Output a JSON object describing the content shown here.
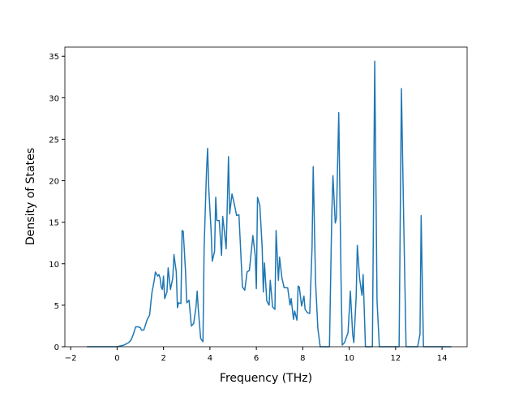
{
  "chart_data": {
    "type": "line",
    "xlabel": "Frequency (THz)",
    "ylabel": "Density of States",
    "xlim": [
      -2.25,
      15.08
    ],
    "ylim": [
      0,
      36.1
    ],
    "xticks": [
      {
        "value": -2,
        "label": "−2"
      },
      0,
      2,
      4,
      6,
      8,
      10,
      12,
      14
    ],
    "yticks": [
      0,
      5,
      10,
      15,
      20,
      25,
      30,
      35
    ],
    "series": [
      {
        "color": "#1f77b4",
        "x": [
          -1.3,
          0,
          0.3,
          0.5,
          0.6,
          0.7,
          0.8,
          0.9,
          1.0,
          1.05,
          1.15,
          1.3,
          1.4,
          1.5,
          1.6,
          1.65,
          1.75,
          1.8,
          1.85,
          1.9,
          1.95,
          2.0,
          2.05,
          2.15,
          2.2,
          2.3,
          2.4,
          2.45,
          2.55,
          2.6,
          2.65,
          2.75,
          2.8,
          2.85,
          2.95,
          3.0,
          3.1,
          3.2,
          3.3,
          3.4,
          3.45,
          3.5,
          3.6,
          3.7,
          3.75,
          3.85,
          3.9,
          3.95,
          4.05,
          4.1,
          4.2,
          4.25,
          4.3,
          4.4,
          4.5,
          4.55,
          4.6,
          4.7,
          4.8,
          4.85,
          4.95,
          5.05,
          5.15,
          5.25,
          5.4,
          5.5,
          5.6,
          5.7,
          5.85,
          5.95,
          6.0,
          6.05,
          6.15,
          6.25,
          6.3,
          6.35,
          6.45,
          6.55,
          6.6,
          6.7,
          6.8,
          6.85,
          6.95,
          7.0,
          7.1,
          7.2,
          7.35,
          7.45,
          7.5,
          7.6,
          7.65,
          7.75,
          7.8,
          7.85,
          7.95,
          8.05,
          8.1,
          8.2,
          8.3,
          8.4,
          8.45,
          8.55,
          8.65,
          8.75,
          9.15,
          9.25,
          9.3,
          9.4,
          9.45,
          9.55,
          9.65,
          9.7,
          9.8,
          9.95,
          10.05,
          10.15,
          10.2,
          10.3,
          10.35,
          10.45,
          10.55,
          10.6,
          10.7,
          11.0,
          11.1,
          11.2,
          11.3,
          12.15,
          12.25,
          12.35,
          12.45,
          12.95,
          13.05,
          13.1,
          13.2,
          14.4
        ],
        "values": [
          0,
          0,
          0.2,
          0.5,
          0.8,
          1.5,
          2.4,
          2.4,
          2.3,
          2.0,
          2.0,
          3.3,
          3.8,
          6.5,
          8.0,
          9.0,
          8.5,
          8.7,
          8.3,
          7.2,
          6.9,
          8.5,
          5.8,
          6.6,
          9.5,
          6.9,
          8.3,
          11.1,
          9.0,
          4.7,
          5.3,
          5.2,
          14.0,
          13.9,
          9.0,
          5.3,
          5.6,
          2.5,
          2.8,
          4.8,
          6.7,
          4.5,
          1.0,
          0.6,
          12.0,
          21.0,
          23.9,
          19.0,
          14.0,
          10.3,
          11.5,
          18.0,
          15.2,
          15.2,
          11.0,
          15.7,
          14.5,
          11.8,
          22.9,
          16.0,
          18.4,
          17.2,
          15.8,
          15.9,
          7.2,
          6.8,
          9.0,
          9.2,
          13.4,
          11.0,
          7.0,
          18.0,
          17.0,
          12.0,
          6.6,
          10.1,
          5.5,
          5.0,
          8.0,
          4.8,
          4.5,
          14.0,
          8.0,
          10.8,
          8.3,
          7.1,
          7.1,
          5.0,
          5.8,
          3.3,
          4.3,
          3.2,
          7.3,
          7.2,
          4.9,
          6.1,
          4.5,
          4.1,
          4.0,
          12.0,
          21.7,
          7.8,
          2.2,
          0,
          0,
          16.0,
          20.6,
          14.9,
          15.5,
          28.2,
          8.0,
          0.2,
          0.5,
          1.7,
          6.7,
          1.5,
          0.5,
          6.0,
          12.2,
          8.2,
          6.2,
          8.7,
          0,
          0,
          34.4,
          5.5,
          0,
          0,
          31.1,
          15.0,
          0,
          0,
          1.5,
          15.8,
          0,
          0
        ]
      }
    ]
  }
}
